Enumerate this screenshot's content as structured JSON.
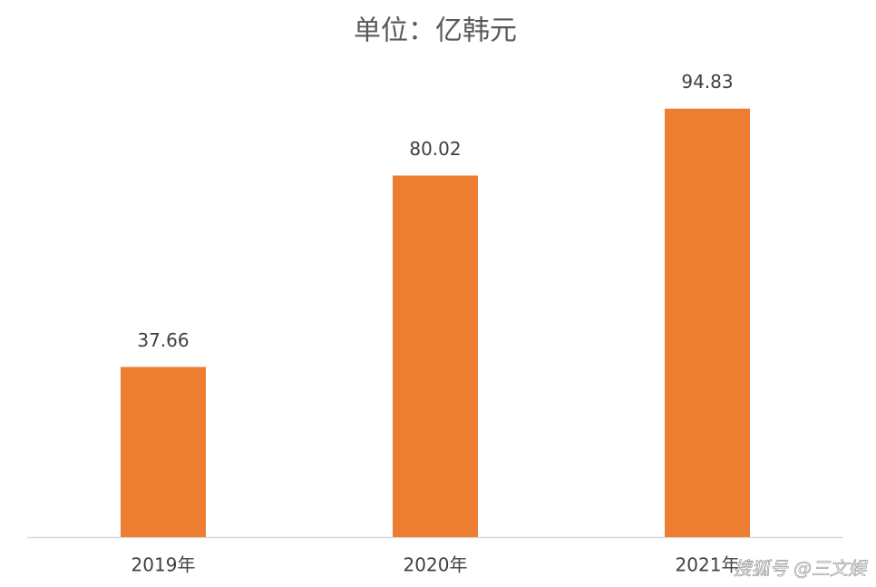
{
  "chart_data": {
    "type": "bar",
    "title": "单位：亿韩元",
    "categories": [
      "2019年",
      "2020年",
      "2021年"
    ],
    "values": [
      37.66,
      80.02,
      94.83
    ],
    "color": "#ed7d31",
    "ylim": [
      0,
      100
    ],
    "watermark": "搜狐号 @三文娱"
  }
}
